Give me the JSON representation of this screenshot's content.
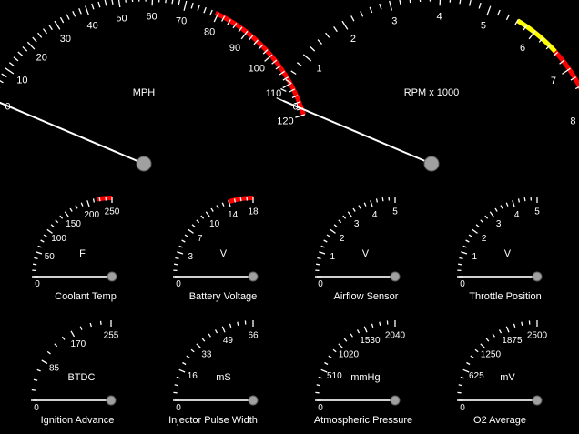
{
  "gauges": [
    {
      "id": "mph",
      "title": "",
      "unit": "MPH",
      "value": 0,
      "ticks": [
        "0",
        "10",
        "20",
        "30",
        "40",
        "50",
        "60",
        "70",
        "80",
        "90",
        "100",
        "110",
        "120"
      ],
      "minors": 4,
      "red_from": 0.66,
      "yellow_from": null
    },
    {
      "id": "rpm",
      "title": "",
      "unit": "RPM x 1000",
      "value": 0,
      "ticks": [
        "0",
        "1",
        "2",
        "3",
        "4",
        "5",
        "6",
        "7",
        "8"
      ],
      "minors": 4,
      "red_from": 0.82,
      "yellow_from": 0.7
    },
    {
      "id": "coolant",
      "title": "Coolant Temp",
      "unit": "F",
      "value": 0,
      "ticks": [
        "0",
        "50",
        "100",
        "150",
        "200",
        "250"
      ],
      "minors": 3,
      "red_from": 0.88,
      "yellow_from": null
    },
    {
      "id": "battery",
      "title": "Battery Voltage",
      "unit": "V",
      "value": 0,
      "ticks": [
        "0",
        "3",
        "7",
        "10",
        "14",
        "18"
      ],
      "minors": 3,
      "red_from": 0.8,
      "yellow_from": null
    },
    {
      "id": "airflow",
      "title": "Airflow Sensor",
      "unit": "V",
      "value": 0,
      "ticks": [
        "0",
        "1",
        "2",
        "3",
        "4",
        "5"
      ],
      "minors": 3,
      "red_from": null,
      "yellow_from": null
    },
    {
      "id": "throttle",
      "title": "Throttle Position",
      "unit": "V",
      "value": 0,
      "ticks": [
        "0",
        "1",
        "2",
        "3",
        "4",
        "5"
      ],
      "minors": 3,
      "red_from": null,
      "yellow_from": null
    },
    {
      "id": "ignition",
      "title": "Ignition Advance",
      "unit": "BTDC",
      "value": 0,
      "ticks": [
        "0",
        "85",
        "170",
        "255"
      ],
      "minors": 3,
      "red_from": null,
      "yellow_from": null
    },
    {
      "id": "injector",
      "title": "Injector Pulse Width",
      "unit": "mS",
      "value": 0,
      "ticks": [
        "0",
        "16",
        "33",
        "49",
        "66"
      ],
      "minors": 3,
      "red_from": null,
      "yellow_from": null
    },
    {
      "id": "pressure",
      "title": "Atmospheric Pressure",
      "unit": "mmHg",
      "value": 0,
      "ticks": [
        "0",
        "510",
        "1020",
        "1530",
        "2040"
      ],
      "minors": 3,
      "red_from": null,
      "yellow_from": null
    },
    {
      "id": "o2",
      "title": "O2 Average",
      "unit": "mV",
      "value": 0,
      "ticks": [
        "0",
        "625",
        "1250",
        "1875",
        "2500"
      ],
      "minors": 3,
      "red_from": null,
      "yellow_from": null
    }
  ],
  "colors": {
    "background": "#000000",
    "ink": "#ffffff",
    "red_zone": "#ff0000",
    "yellow_zone": "#ffff00",
    "hub": "#a0a0a0"
  }
}
